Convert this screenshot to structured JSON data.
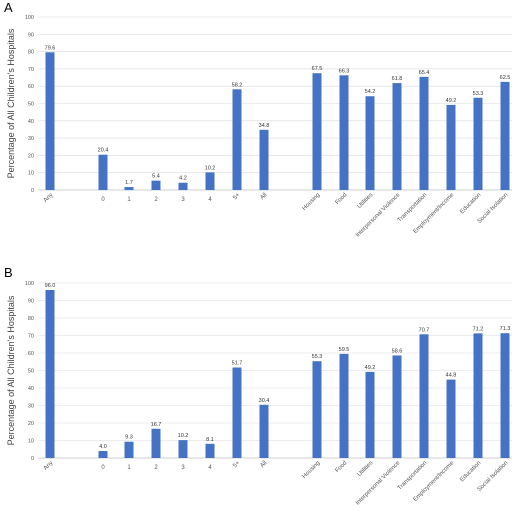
{
  "chart_data": [
    {
      "type": "bar",
      "panel_label": "A",
      "ylabel": "Percentage of All Children's Hospitals",
      "ylim": [
        0,
        100
      ],
      "yticks": [
        0,
        10,
        20,
        30,
        40,
        50,
        60,
        70,
        80,
        90,
        100
      ],
      "grid": true,
      "categories": [
        "Any",
        "0",
        "1",
        "2",
        "3",
        "4",
        "5+",
        "All",
        "Housing",
        "Food",
        "Utilities",
        "Interpersonal Violence",
        "Transportation",
        "Employment/Income",
        "Education",
        "Social Isolation"
      ],
      "values": [
        79.6,
        20.4,
        1.7,
        5.4,
        4.2,
        10.2,
        58.2,
        34.8,
        67.5,
        66.3,
        54.2,
        61.8,
        65.4,
        49.2,
        53.3,
        62.5
      ],
      "value_labels": [
        "79.6",
        "20.4",
        "1.7",
        "5.4",
        "4.2",
        "10.2",
        "58.2",
        "34.8",
        "67.5",
        "66.3",
        "54.2",
        "61.8",
        "65.4",
        "49.2",
        "53.3",
        "62.5"
      ],
      "color": "#4472c4"
    },
    {
      "type": "bar",
      "panel_label": "B",
      "ylabel": "Percentage of All Children's Hospitals",
      "ylim": [
        0,
        100
      ],
      "yticks": [
        0,
        10,
        20,
        30,
        40,
        50,
        60,
        70,
        80,
        90,
        100
      ],
      "grid": true,
      "categories": [
        "Any",
        "0",
        "1",
        "2",
        "3",
        "4",
        "5+",
        "All",
        "Housing",
        "Food",
        "Utilities",
        "Interpersonal Violence",
        "Transportation",
        "Employment/Income",
        "Education",
        "Social Isolation"
      ],
      "values": [
        96.0,
        4.0,
        9.3,
        16.7,
        10.2,
        8.1,
        51.7,
        30.4,
        55.3,
        59.5,
        49.2,
        58.6,
        70.7,
        44.8,
        71.2,
        71.3
      ],
      "value_labels": [
        "96.0",
        "4.0",
        "9.3",
        "16.7",
        "10.2",
        "8.1",
        "51.7",
        "30.4",
        "55.3",
        "59.5",
        "49.2",
        "58.6",
        "70.7",
        "44.8",
        "71.2",
        "71.3"
      ],
      "color": "#4472c4"
    }
  ]
}
